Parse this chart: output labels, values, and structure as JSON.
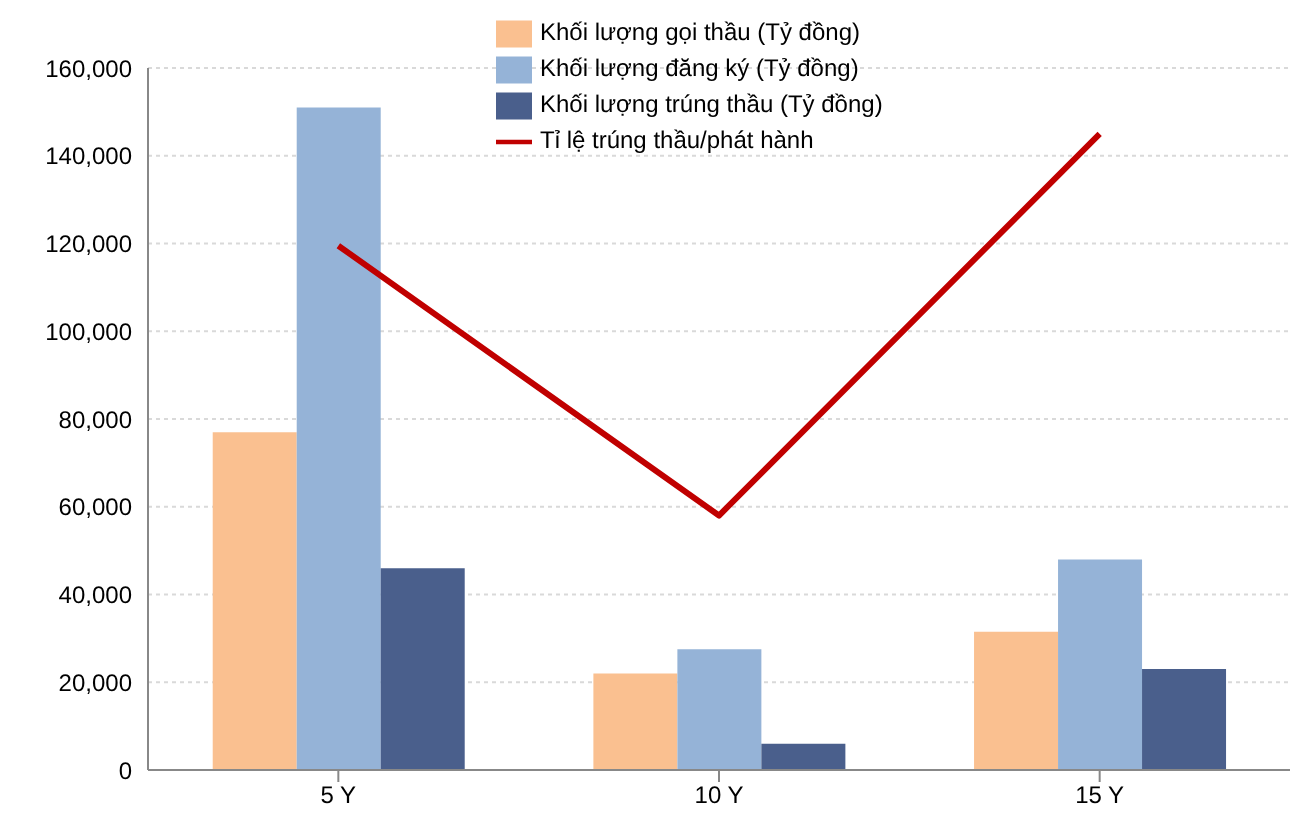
{
  "chart_data": {
    "type": "bar",
    "categories": [
      "5 Y",
      "10 Y",
      "15 Y"
    ],
    "series": [
      {
        "name": "Khối lượng gọi thầu (Tỷ đồng)",
        "color": "#fac090",
        "values": [
          77000,
          22000,
          31500
        ]
      },
      {
        "name": "Khối lượng đăng ký  (Tỷ đồng)",
        "color": "#95b3d7",
        "values": [
          151000,
          27500,
          48000
        ]
      },
      {
        "name": "Khối lượng trúng thầu  (Tỷ đồng)",
        "color": "#4a5f8c",
        "values": [
          46000,
          6000,
          23000
        ]
      },
      {
        "name": "Tỉ lệ trúng thầu/phát hành",
        "type": "line",
        "color": "#c00000",
        "values": [
          119500,
          58000,
          145000
        ]
      }
    ],
    "ylim": [
      0,
      160000
    ],
    "yticks": [
      {
        "value": 0,
        "label": "0"
      },
      {
        "value": 20000,
        "label": "20,000"
      },
      {
        "value": 40000,
        "label": "40,000"
      },
      {
        "value": 60000,
        "label": "60,000"
      },
      {
        "value": 80000,
        "label": "80,000"
      },
      {
        "value": 100000,
        "label": "100,000"
      },
      {
        "value": 120000,
        "label": "120,000"
      },
      {
        "value": 140000,
        "label": "140,000"
      },
      {
        "value": 160000,
        "label": "160,000"
      }
    ],
    "grid": "y",
    "legend": "top",
    "marker": "none"
  }
}
